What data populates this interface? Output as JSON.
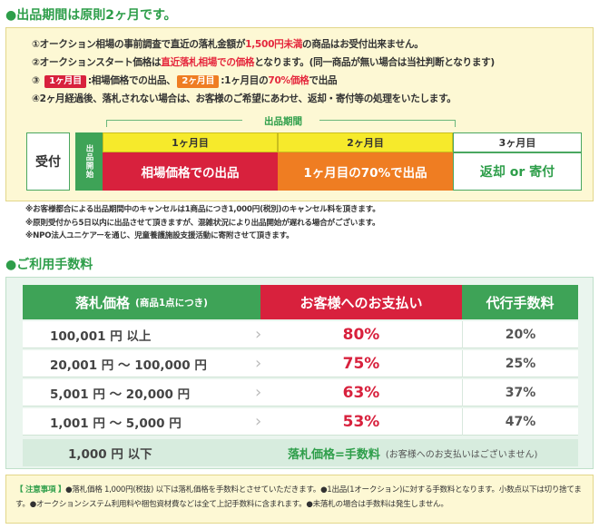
{
  "section1": {
    "title": "●出品期間は原則2ヶ月です。",
    "rules": {
      "r1_pre": "①オークション相場の事前調査で直近の落札金額が",
      "r1_red": "1,500円未満",
      "r1_post": "の商品はお受付出来ません。",
      "r2_pre": "②オークションスタート価格は",
      "r2_red": "直近落札相場での価格",
      "r2_post": "となります。(同一商品が無い場合は当社判断となります)",
      "r3_pre": "③",
      "r3_badge1": "1ヶ月目",
      "r3_mid": ":相場価格での出品、",
      "r3_badge2": "2ヶ月目",
      "r3_post_a": ":1ヶ月目の",
      "r3_red": "70%価格",
      "r3_post_b": "で出品",
      "r4": "④2ヶ月経過後、落札されない場合は、お客様のご希望にあわせ、返却・寄付等の処理をいたします。"
    },
    "period_label": "出品期間",
    "timeline": {
      "uketsuke": "受付",
      "start": "出品開始",
      "month1": "1ヶ月目",
      "month2": "2ヶ月目",
      "month3": "3ヶ月目",
      "action1": "相場価格での出品",
      "action2": "1ヶ月目の70%で出品",
      "action3": "返却 or 寄付"
    },
    "notes": [
      "※お客様都合による出品期間中のキャンセルは1商品につき1,000円(税別)のキャンセル料を頂きます。",
      "※原則受付から5日以内に出品させて頂きますが、混雑状況により出品開始が遅れる場合がございます。",
      "※NPO法人ユニケアーを通じ、児童養護施設支援活動に寄附させて頂きます。"
    ]
  },
  "section2": {
    "title": "●ご利用手数料",
    "header": {
      "col_a": "落札価格",
      "col_a_sub": "(商品1点につき)",
      "col_b": "お客様へのお支払い",
      "col_c": "代行手数料"
    },
    "rows": [
      {
        "price": "100,001 円 以上",
        "payout": "80%",
        "fee": "20%"
      },
      {
        "price": "20,001 円  ～ 100,000 円",
        "payout": "75%",
        "fee": "25%"
      },
      {
        "price": "5,001 円  ～   20,000 円",
        "payout": "63%",
        "fee": "37%"
      },
      {
        "price": "1,001 円  ～     5,000 円",
        "payout": "53%",
        "fee": "47%"
      }
    ],
    "last_row": {
      "price": "1,000 円 以下",
      "note": "落札価格=手数料",
      "sub": "(お客様へのお支払いはございません)"
    }
  },
  "caution": {
    "tag": "【 注意事項 】",
    "text": "●落札価格 1,000円(税抜) 以下は落札価格を手数料とさせていただきます。●1出品(1オークション)に対する手数料となります。小数点以下は切り捨てます。●オークションシステム利用料や梱包資材費などは全て上記手数料に含まれます。●未落札の場合は手数料は発生しません。"
  },
  "colors": {
    "green": "#3ea357",
    "red": "#d8213d",
    "orange": "#ef7d22",
    "yellow": "#f6ea2b",
    "panel_yellow": "#fdf8d4",
    "panel_green": "#eaf5ee"
  }
}
